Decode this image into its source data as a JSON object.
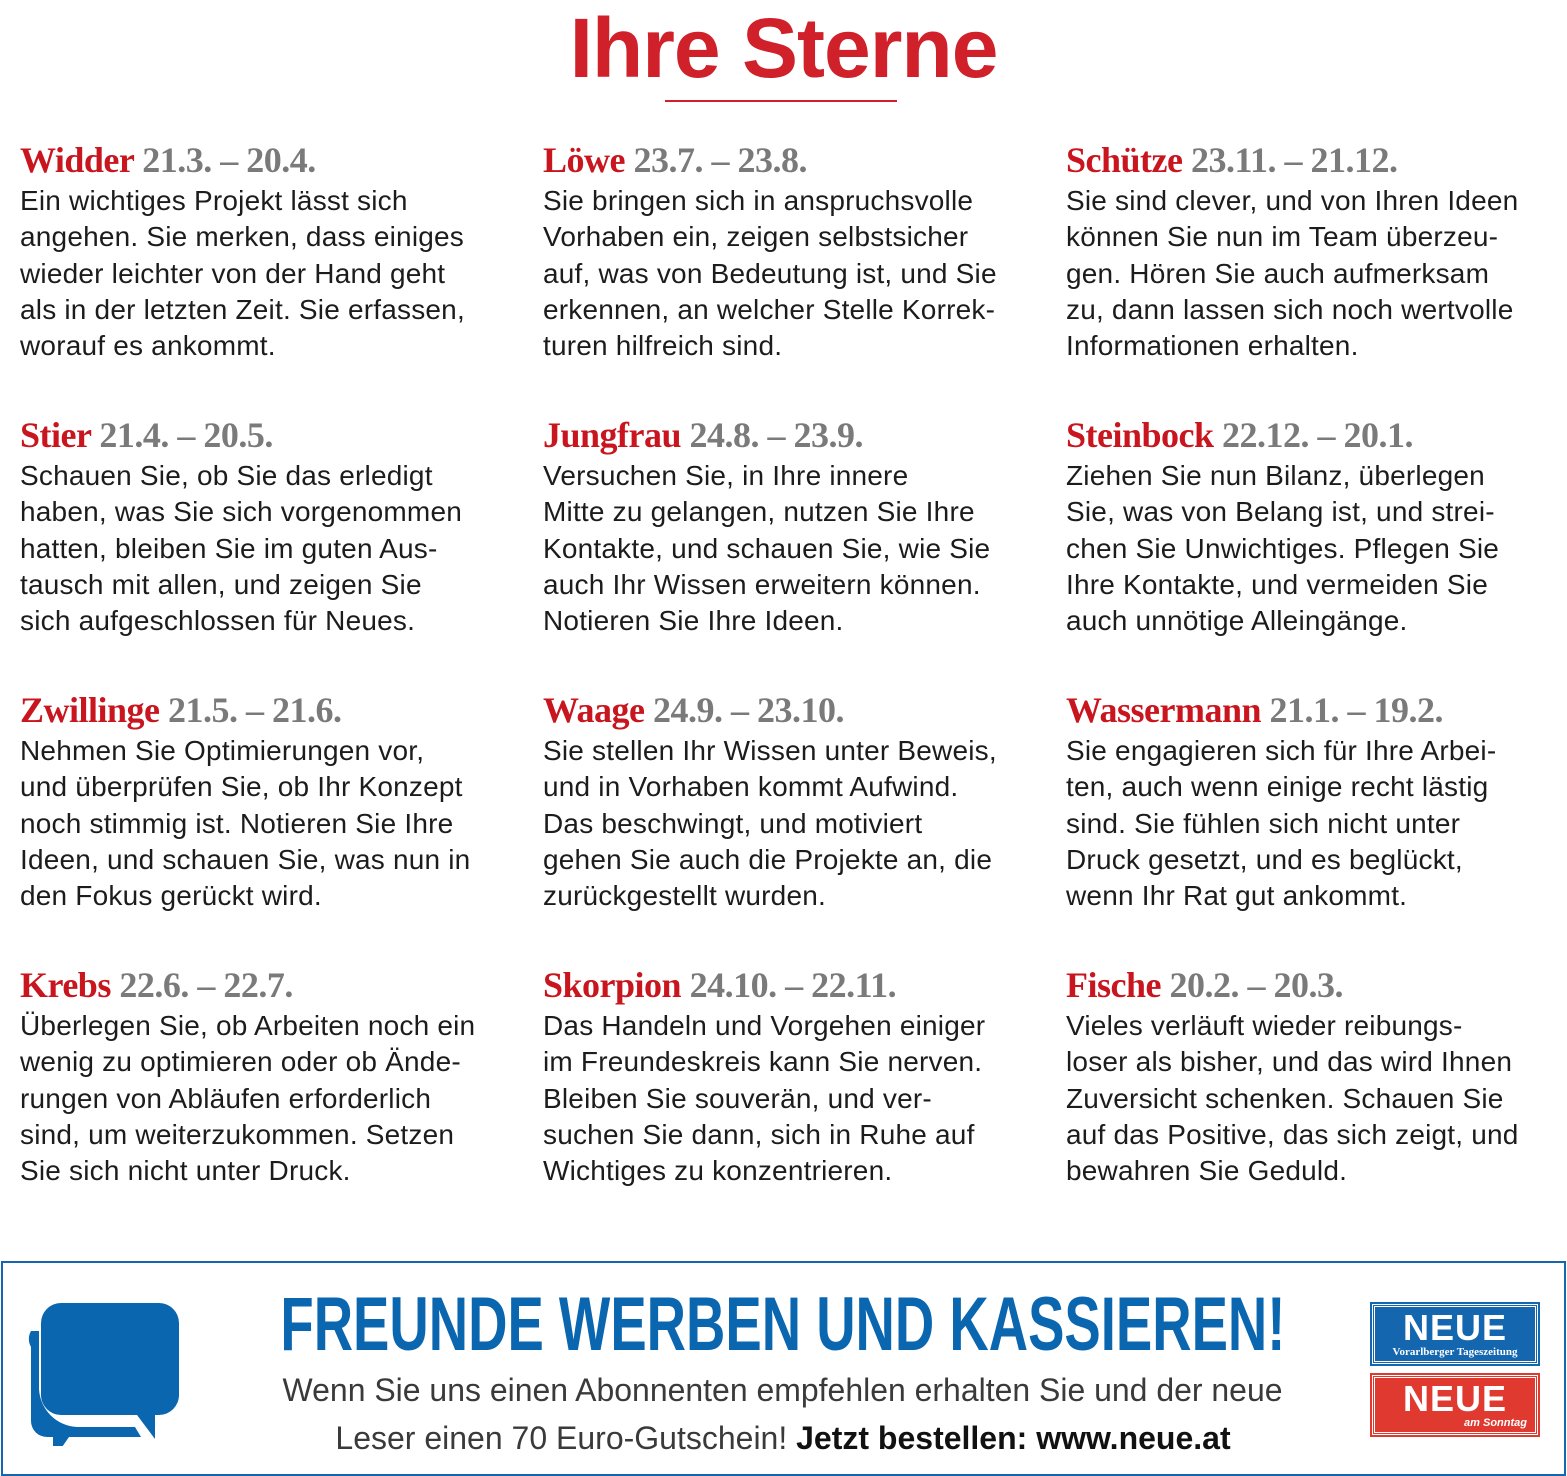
{
  "title": "Ihre Sterne",
  "colors": {
    "accent_red": "#d0202a",
    "date_gray": "#7a7a7a",
    "brand_blue": "#0b66b0"
  },
  "signs": [
    {
      "name": "Widder",
      "dates": "21.3. – 20.4.",
      "lines": [
        "Ein wichtiges Projekt lässt sich",
        "angehen. Sie merken, dass einiges",
        "wieder leichter von der Hand geht",
        "als in der letzten Zeit. Sie erfassen,",
        "worauf es ankommt."
      ]
    },
    {
      "name": "Stier",
      "dates": "21.4. – 20.5.",
      "lines": [
        "Schauen Sie, ob Sie das erledigt",
        "haben, was Sie sich vorgenommen",
        "hatten, bleiben Sie im guten Aus-",
        "tausch mit allen, und zeigen Sie",
        "sich aufgeschlossen für Neues."
      ]
    },
    {
      "name": "Zwillinge",
      "dates": "21.5. – 21.6.",
      "lines": [
        "Nehmen Sie Optimierungen vor,",
        "und überprüfen Sie, ob Ihr Konzept",
        "noch stimmig ist. Notieren Sie Ihre",
        "Ideen, und schauen Sie, was nun in",
        "den Fokus gerückt wird."
      ]
    },
    {
      "name": "Krebs",
      "dates": "22.6. – 22.7.",
      "lines": [
        "Überlegen Sie, ob Arbeiten noch ein",
        "wenig zu optimieren oder ob Ände-",
        "rungen von Abläufen erforderlich",
        "sind, um weiterzukommen. Setzen",
        "Sie sich nicht unter Druck."
      ]
    },
    {
      "name": "Löwe",
      "dates": "23.7. – 23.8.",
      "lines": [
        "Sie bringen sich in anspruchsvolle",
        "Vorhaben ein, zeigen selbstsicher",
        "auf, was von Bedeutung ist, und Sie",
        "erkennen, an welcher Stelle Korrek-",
        "turen hilfreich sind."
      ]
    },
    {
      "name": "Jungfrau",
      "dates": "24.8. – 23.9.",
      "lines": [
        "Versuchen Sie, in Ihre innere",
        "Mitte zu gelangen, nutzen Sie Ihre",
        "Kontakte, und schauen Sie, wie Sie",
        "auch Ihr Wissen erweitern können.",
        "Notieren Sie Ihre Ideen."
      ]
    },
    {
      "name": "Waage",
      "dates": "24.9. – 23.10.",
      "lines": [
        "Sie stellen Ihr Wissen unter Beweis,",
        "und in Vorhaben kommt Aufwind.",
        "Das beschwingt, und motiviert",
        "gehen Sie auch die Projekte an, die",
        "zurückgestellt wurden."
      ]
    },
    {
      "name": "Skorpion",
      "dates": "24.10. – 22.11.",
      "lines": [
        "Das Handeln und Vorgehen einiger",
        "im Freundeskreis kann Sie nerven.",
        "Bleiben Sie souverän, und ver-",
        "suchen Sie dann, sich in Ruhe auf",
        "Wichtiges zu konzentrieren."
      ]
    },
    {
      "name": "Schütze",
      "dates": "23.11. – 21.12.",
      "lines": [
        "Sie sind clever, und von Ihren Ideen",
        "können Sie nun im Team überzeu-",
        "gen. Hören Sie auch aufmerksam",
        "zu, dann lassen sich noch wertvolle",
        "Informationen erhalten."
      ]
    },
    {
      "name": "Steinbock",
      "dates": "22.12. – 20.1.",
      "lines": [
        "Ziehen Sie nun Bilanz, überlegen",
        "Sie, was von Belang ist, und strei-",
        "chen Sie Unwichtiges. Pflegen Sie",
        "Ihre Kontakte, und vermeiden Sie",
        "auch unnötige Alleingänge."
      ]
    },
    {
      "name": "Wassermann",
      "dates": "21.1. – 19.2.",
      "lines": [
        "Sie engagieren sich für Ihre Arbei-",
        "ten, auch wenn einige recht lästig",
        "sind. Sie fühlen sich nicht unter",
        "Druck gesetzt, und es beglückt,",
        "wenn Ihr Rat gut ankommt."
      ]
    },
    {
      "name": "Fische",
      "dates": "20.2. – 20.3.",
      "lines": [
        "Vieles verläuft wieder reibungs-",
        "loser als bisher, und das wird Ihnen",
        "Zuversicht schenken. Schauen Sie",
        "auf das Positive, das sich zeigt, und",
        "bewahren Sie Geduld."
      ]
    }
  ],
  "ad": {
    "icon": "speech-bubbles-icon",
    "headline": "FREUNDE WERBEN UND KASSIEREN!",
    "line1": "Wenn Sie uns einen Abonnenten empfehlen erhalten Sie und der neue",
    "line2": "Leser einen 70 Euro-Gutschein!",
    "cta": "Jetzt bestellen: www.neue.at",
    "logo1": {
      "name": "NEUE",
      "sub": "Vorarlberger Tageszeitung"
    },
    "logo2": {
      "name": "NEUE",
      "sub": "am Sonntag"
    }
  }
}
